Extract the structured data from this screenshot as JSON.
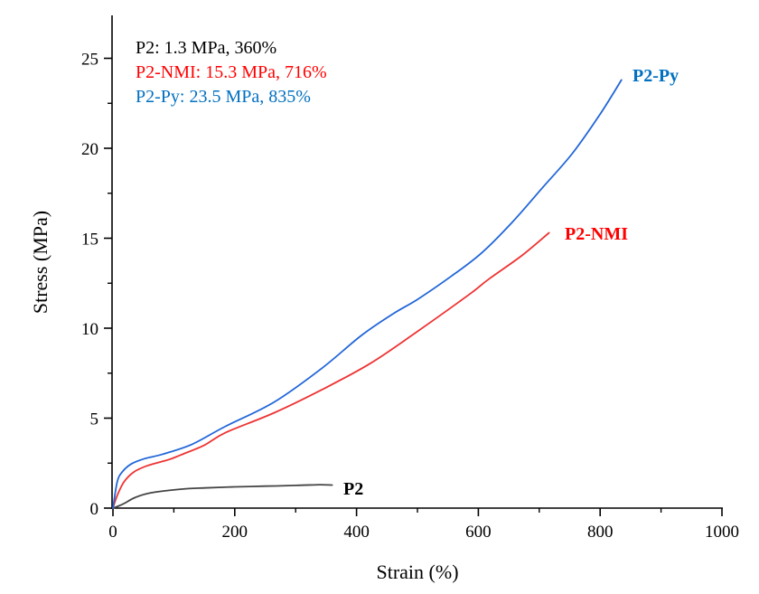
{
  "chart_data": {
    "type": "line",
    "title": "",
    "xlabel": "Strain (%)",
    "ylabel": "Stress (MPa)",
    "xlim": [
      0,
      1000
    ],
    "ylim": [
      0,
      27.5
    ],
    "x_ticks": [
      0,
      200,
      400,
      600,
      800,
      1000
    ],
    "x_tick_labels": [
      "0",
      "200",
      "400",
      "600",
      "800",
      "1000"
    ],
    "x_minor_ticks": [
      100,
      300,
      500,
      700,
      900
    ],
    "y_ticks": [
      0,
      5,
      10,
      15,
      20,
      25
    ],
    "y_tick_labels": [
      "0",
      "5",
      "10",
      "15",
      "20",
      "25"
    ],
    "y_minor_ticks": [
      2.5,
      7.5,
      12.5,
      17.5,
      22.5
    ],
    "grid": false,
    "legend_position": "top-left",
    "annotations": [
      {
        "text": "P2: 1.3 MPa, 360%",
        "color": "#000000"
      },
      {
        "text": "P2-NMI: 15.3 MPa, 716%",
        "color": "#ff0000"
      },
      {
        "text": "P2-Py: 23.5 MPa, 835%",
        "color": "#0070c0"
      }
    ],
    "series": [
      {
        "name": "P2",
        "label": "P2",
        "color": "#444444",
        "label_color": "#000000",
        "x": [
          0,
          8,
          18,
          37,
          62,
          111,
          150,
          200,
          250,
          300,
          340,
          360
        ],
        "y": [
          0,
          0.1,
          0.25,
          0.6,
          0.85,
          1.05,
          1.12,
          1.18,
          1.22,
          1.26,
          1.3,
          1.28
        ]
      },
      {
        "name": "P2-NMI",
        "label": "P2-NMI",
        "color": "#ee3333",
        "label_color": "#ff0000",
        "x": [
          0,
          7,
          18,
          34,
          56,
          92,
          111,
          150,
          185,
          265,
          344,
          423,
          497,
          586,
          616,
          670,
          716
        ],
        "y": [
          0,
          0.7,
          1.45,
          2.0,
          2.35,
          2.7,
          2.95,
          3.5,
          4.2,
          5.3,
          6.6,
          8.05,
          9.75,
          11.9,
          12.7,
          14.0,
          15.3
        ]
      },
      {
        "name": "P2-Py",
        "label": "P2-Py",
        "color": "#2166d9",
        "label_color": "#0070c0",
        "x": [
          0,
          7,
          15,
          30,
          52,
          82,
          130,
          185,
          265,
          344,
          408,
          460,
          500,
          556,
          606,
          656,
          705,
          754,
          800,
          835
        ],
        "y": [
          0,
          1.45,
          2.0,
          2.45,
          2.75,
          3.0,
          3.55,
          4.55,
          5.9,
          7.8,
          9.6,
          10.8,
          11.6,
          12.9,
          14.2,
          15.9,
          17.8,
          19.7,
          21.9,
          23.8
        ]
      }
    ]
  }
}
